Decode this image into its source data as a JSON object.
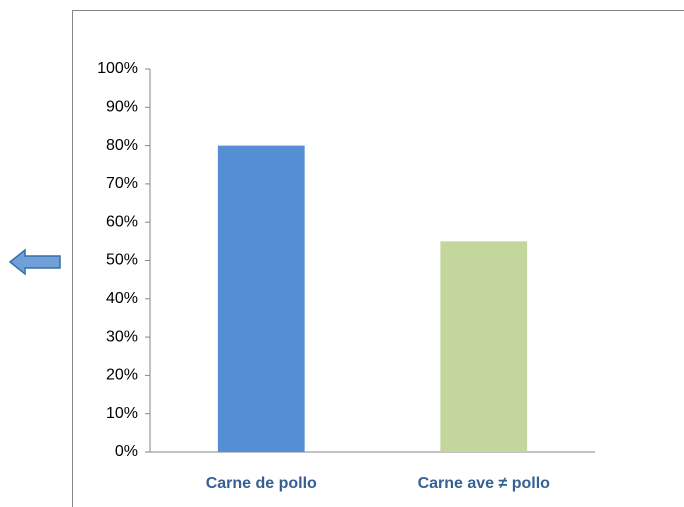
{
  "chart_data": {
    "type": "bar",
    "categories": [
      "Carne de pollo",
      "Carne ave ≠ pollo"
    ],
    "values": [
      80,
      55
    ],
    "colors": [
      "#558ed5",
      "#c3d69b"
    ],
    "ylim": [
      0,
      100
    ],
    "yticks": [
      {
        "value": 0,
        "label": "0%"
      },
      {
        "value": 10,
        "label": "10%"
      },
      {
        "value": 20,
        "label": "20%"
      },
      {
        "value": 30,
        "label": "30%"
      },
      {
        "value": 40,
        "label": "40%"
      },
      {
        "value": 50,
        "label": "50%"
      },
      {
        "value": 60,
        "label": "60%"
      },
      {
        "value": 70,
        "label": "70%"
      },
      {
        "value": 80,
        "label": "80%"
      },
      {
        "value": 90,
        "label": "90%"
      },
      {
        "value": 100,
        "label": "100%"
      }
    ],
    "grid": false
  }
}
